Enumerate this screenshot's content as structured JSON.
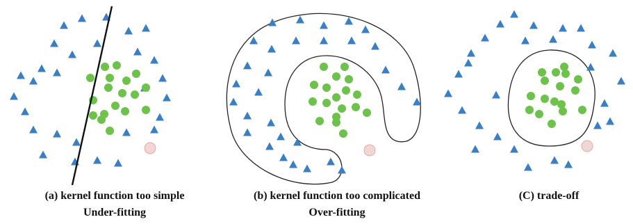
{
  "colors": {
    "triangle": "#3a7fc1",
    "circle": "#6cc24a",
    "outlier": "#f2d6d3",
    "outlier_stroke": "#e0aca8",
    "boundary": "#222222"
  },
  "icons": {
    "negative": "triangle-icon",
    "positive": "circle-icon",
    "outlier": "outlier-point-icon"
  },
  "panels": [
    {
      "id": "a",
      "caption_line1": "(a) kernel function too simple",
      "caption_line2": "Under-fitting"
    },
    {
      "id": "b",
      "caption_line1": "(b) kernel function too complicated",
      "caption_line2": "Over-fitting"
    },
    {
      "id": "c",
      "caption_line1": "(C) trade-off",
      "caption_line2": ""
    }
  ]
}
